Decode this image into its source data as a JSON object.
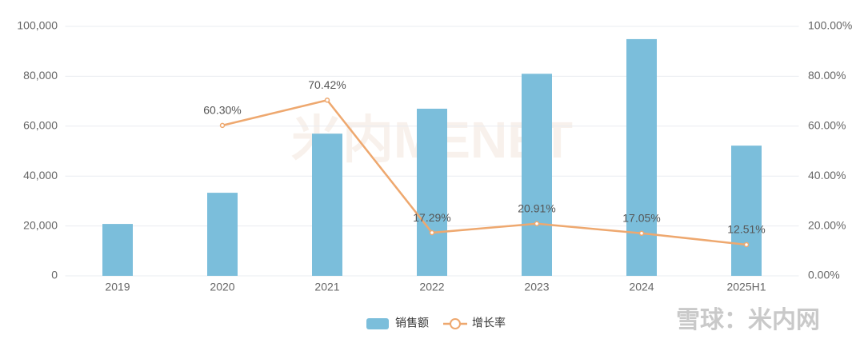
{
  "chart_data": {
    "type": "bar",
    "watermark": "米内MENET",
    "corner_watermark": "雪球：米内网",
    "categories": [
      "2019",
      "2020",
      "2021",
      "2022",
      "2023",
      "2024",
      "2025H1"
    ],
    "series": [
      {
        "name": "销售额",
        "type": "bar",
        "color": "#7bbedb",
        "values": [
          20800,
          33300,
          57000,
          67000,
          81000,
          94900,
          52200
        ]
      },
      {
        "name": "增长率",
        "type": "line",
        "axis": "y2",
        "color": "#eea86f",
        "values": [
          null,
          60.3,
          70.42,
          17.29,
          20.91,
          17.05,
          12.51
        ],
        "value_labels": [
          null,
          "60.30%",
          "70.42%",
          "17.29%",
          "20.91%",
          "17.05%",
          "12.51%"
        ]
      }
    ],
    "ylim": [
      0,
      100000
    ],
    "yticks": [
      0,
      {
        "value": 20000,
        "label": "20,000"
      },
      {
        "value": 40000,
        "label": "40,000"
      },
      {
        "value": 60000,
        "label": "60,000"
      },
      {
        "value": 80000,
        "label": "80,000"
      },
      {
        "value": 100000,
        "label": "100,000"
      }
    ],
    "y2lim": [
      0,
      100
    ],
    "y2ticks": [
      {
        "value": 0,
        "label": "0.00%"
      },
      {
        "value": 20,
        "label": "20.00%"
      },
      {
        "value": 40,
        "label": "40.00%"
      },
      {
        "value": 60,
        "label": "60.00%"
      },
      {
        "value": 80,
        "label": "80.00%"
      },
      {
        "value": 100,
        "label": "100.00%"
      }
    ],
    "grid": true,
    "legend": "bottom"
  }
}
